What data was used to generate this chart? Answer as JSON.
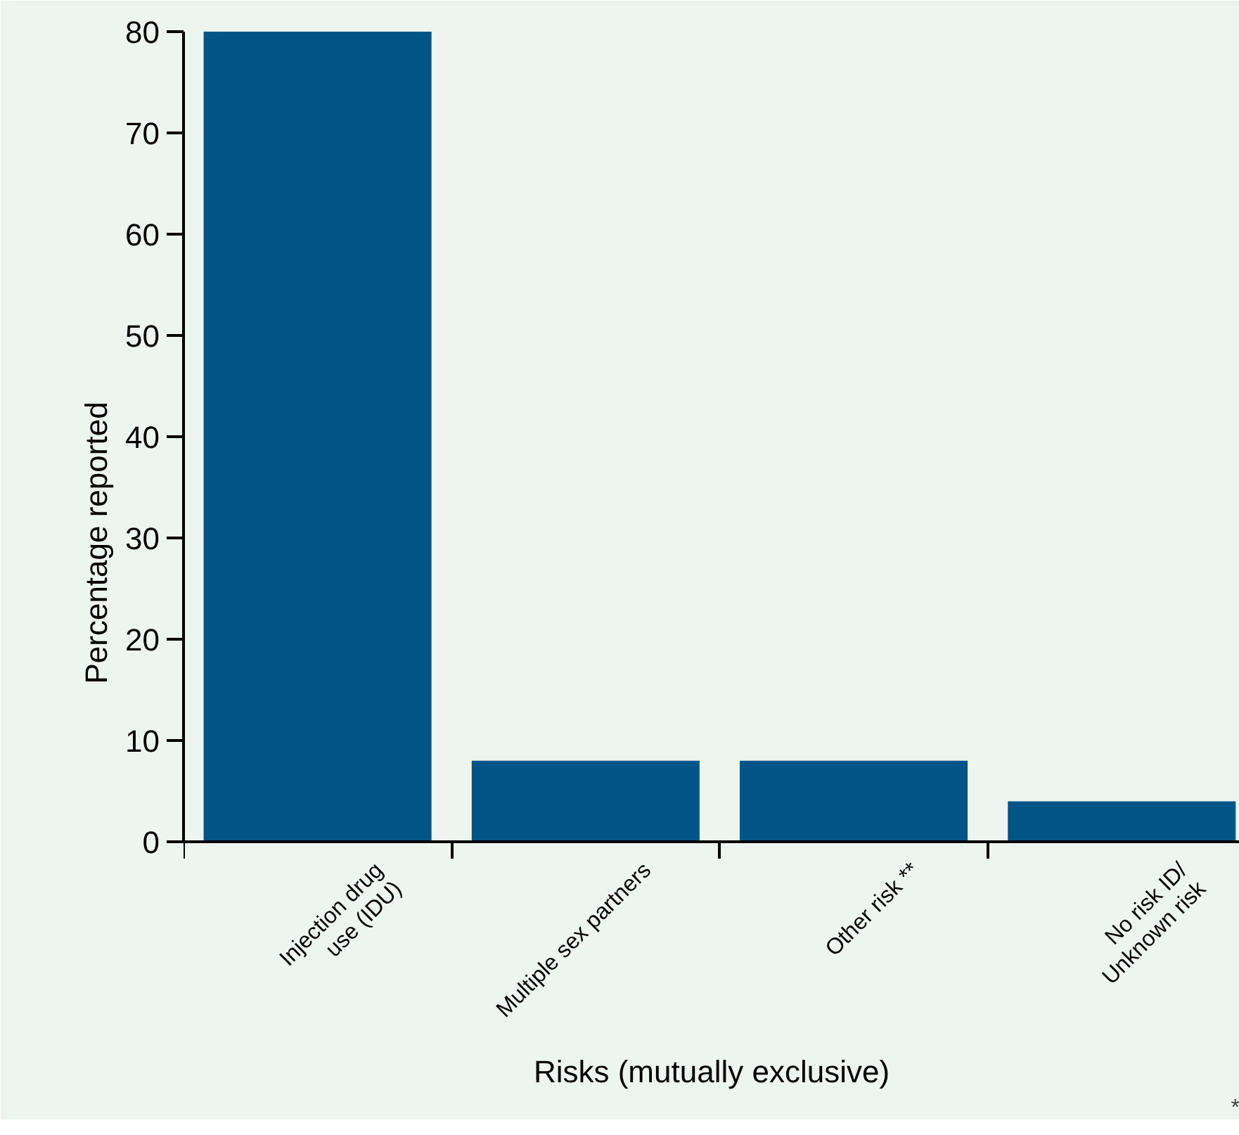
{
  "chart_data": {
    "type": "bar",
    "categories": [
      "Injection drug\nuse (IDU)",
      "Multiple sex partners",
      "Other risk **",
      "No risk ID/\nUnknown risk"
    ],
    "values": [
      80,
      8,
      8,
      4
    ],
    "color": "#005587",
    "xlabel": "Risks (mutually exclusive)",
    "ylabel": "Percentage reported",
    "ylim": [
      0,
      80
    ],
    "yticks": [
      0,
      10,
      20,
      30,
      40,
      50,
      60,
      70,
      80
    ],
    "annotations": [
      "*"
    ]
  }
}
